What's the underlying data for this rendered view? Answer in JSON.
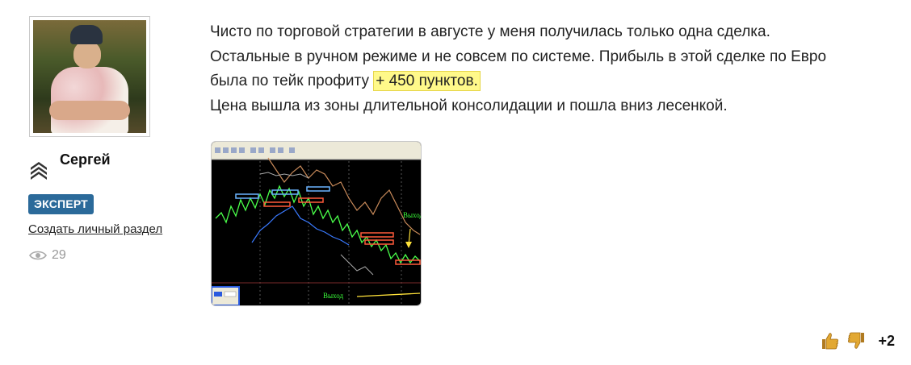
{
  "author": {
    "name": "Сергей",
    "badge": "ЭКСПЕРТ",
    "personal_link": "Создать личный раздел",
    "views": "29"
  },
  "post": {
    "line1": "Чисто по торговой стратегии в августе у меня получилась только одна сделка.",
    "line2": "Остальные в ручном режиме и не совсем по системе. Прибыль в этой сделке по Евро",
    "line3_before": "была по тейк профиту ",
    "line3_highlight": "+ 450 пунктов.",
    "line4": "Цена вышла из зоны длительной консолидации и пошла вниз лесенкой.",
    "image_labels": {
      "exit_top": "Выход",
      "exit_bottom": "Выход"
    }
  },
  "rating": {
    "score": "+2"
  },
  "colors": {
    "badge": "#2b6a9a",
    "highlight": "#fff98a"
  }
}
